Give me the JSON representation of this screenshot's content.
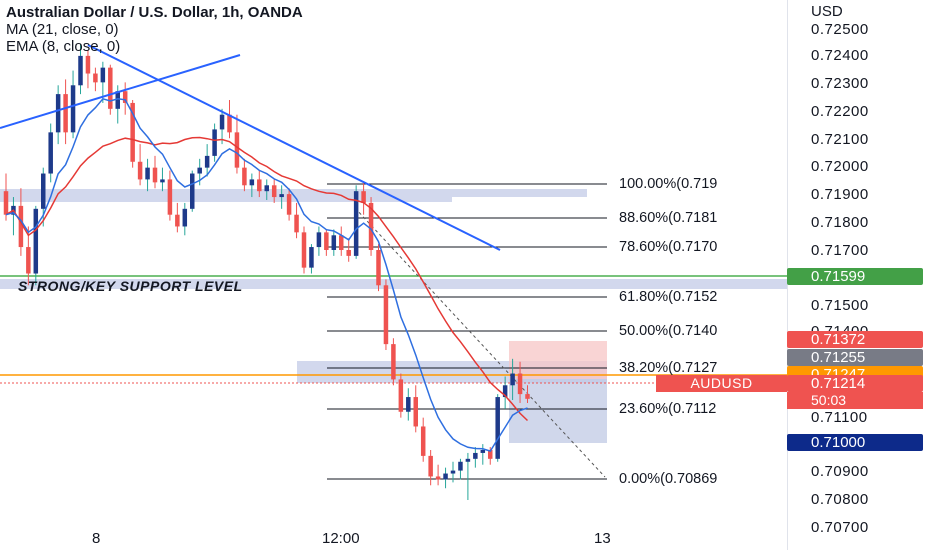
{
  "header": {
    "title": "Australian Dollar / U.S. Dollar, 1h, OANDA",
    "indicators": [
      "MA (21, close, 0)",
      "EMA (8, close, 0)"
    ]
  },
  "axis": {
    "currency": "USD",
    "y_ticks": [
      "0.72500",
      "0.72400",
      "0.72300",
      "0.72200",
      "0.72100",
      "0.72000",
      "0.71900",
      "0.71800",
      "0.71700",
      "0.71500",
      "0.71400",
      "0.71100",
      "0.70900",
      "0.70800",
      "0.70700"
    ],
    "x_ticks": [
      "8",
      "12:00",
      "13"
    ]
  },
  "annotations": {
    "support_label": "STRONG/KEY SUPPORT LEVEL",
    "fib_levels": [
      "100.00%(0.719",
      "88.60%(0.7181",
      "78.60%(0.7170",
      "61.80%(0.7152",
      "50.00%(0.7140",
      "38.20%(0.7127",
      "23.60%(0.7112",
      "0.00%(0.70869"
    ]
  },
  "badges": {
    "support_price": "0.71599",
    "target_price": "0.71372",
    "marker_price": "0.71255",
    "orange_price": "0.71247",
    "symbol": "AUDUSD",
    "last_price": "0.71214",
    "countdown": "50:03",
    "stop_price": "0.71000"
  },
  "colors": {
    "up": "#1e3a8a",
    "down": "#ef5350",
    "ma": "#e53935",
    "ema": "#2f6fe0",
    "trendline": "#2962ff",
    "support": "#4caf50",
    "orange": "#ff9800"
  },
  "chart_data": {
    "type": "candlestick",
    "title": "Australian Dollar / U.S. Dollar, 1h, OANDA",
    "ylim": [
      0.707,
      0.7257
    ],
    "series": [
      {
        "name": "MA (21, close, 0)"
      },
      {
        "name": "EMA (8, close, 0)"
      }
    ],
    "candles": [
      {
        "o": 0.7192,
        "h": 0.7198,
        "l": 0.7182,
        "c": 0.7184
      },
      {
        "o": 0.7184,
        "h": 0.719,
        "l": 0.7177,
        "c": 0.7187
      },
      {
        "o": 0.7187,
        "h": 0.7193,
        "l": 0.717,
        "c": 0.7173
      },
      {
        "o": 0.7173,
        "h": 0.718,
        "l": 0.716,
        "c": 0.7164
      },
      {
        "o": 0.7164,
        "h": 0.7187,
        "l": 0.716,
        "c": 0.7186
      },
      {
        "o": 0.7186,
        "h": 0.72,
        "l": 0.718,
        "c": 0.7198
      },
      {
        "o": 0.7198,
        "h": 0.7215,
        "l": 0.7195,
        "c": 0.7212
      },
      {
        "o": 0.7212,
        "h": 0.7228,
        "l": 0.7208,
        "c": 0.7225
      },
      {
        "o": 0.7225,
        "h": 0.723,
        "l": 0.7208,
        "c": 0.7212
      },
      {
        "o": 0.7212,
        "h": 0.7233,
        "l": 0.721,
        "c": 0.7228
      },
      {
        "o": 0.7228,
        "h": 0.7242,
        "l": 0.7225,
        "c": 0.7238
      },
      {
        "o": 0.7238,
        "h": 0.724,
        "l": 0.7227,
        "c": 0.7232
      },
      {
        "o": 0.7232,
        "h": 0.7234,
        "l": 0.7226,
        "c": 0.7229
      },
      {
        "o": 0.7229,
        "h": 0.7236,
        "l": 0.7222,
        "c": 0.7234
      },
      {
        "o": 0.7234,
        "h": 0.7235,
        "l": 0.7218,
        "c": 0.722
      },
      {
        "o": 0.722,
        "h": 0.7228,
        "l": 0.7215,
        "c": 0.7226
      },
      {
        "o": 0.7226,
        "h": 0.7229,
        "l": 0.7218,
        "c": 0.7222
      },
      {
        "o": 0.7222,
        "h": 0.7223,
        "l": 0.72,
        "c": 0.7202
      },
      {
        "o": 0.7202,
        "h": 0.7208,
        "l": 0.7194,
        "c": 0.7196
      },
      {
        "o": 0.7196,
        "h": 0.7203,
        "l": 0.7192,
        "c": 0.72
      },
      {
        "o": 0.72,
        "h": 0.7204,
        "l": 0.7193,
        "c": 0.7195
      },
      {
        "o": 0.7195,
        "h": 0.72,
        "l": 0.7192,
        "c": 0.7196
      },
      {
        "o": 0.7196,
        "h": 0.7199,
        "l": 0.7182,
        "c": 0.7184
      },
      {
        "o": 0.7184,
        "h": 0.7188,
        "l": 0.7178,
        "c": 0.718
      },
      {
        "o": 0.718,
        "h": 0.7188,
        "l": 0.7177,
        "c": 0.7186
      },
      {
        "o": 0.7186,
        "h": 0.7199,
        "l": 0.7185,
        "c": 0.7198
      },
      {
        "o": 0.7198,
        "h": 0.7203,
        "l": 0.7194,
        "c": 0.72
      },
      {
        "o": 0.72,
        "h": 0.7208,
        "l": 0.7197,
        "c": 0.7204
      },
      {
        "o": 0.7204,
        "h": 0.7215,
        "l": 0.7202,
        "c": 0.7213
      },
      {
        "o": 0.7213,
        "h": 0.722,
        "l": 0.7208,
        "c": 0.7218
      },
      {
        "o": 0.7218,
        "h": 0.7223,
        "l": 0.721,
        "c": 0.7212
      },
      {
        "o": 0.7212,
        "h": 0.7218,
        "l": 0.7198,
        "c": 0.72
      },
      {
        "o": 0.72,
        "h": 0.7203,
        "l": 0.7192,
        "c": 0.7194
      },
      {
        "o": 0.7194,
        "h": 0.7198,
        "l": 0.719,
        "c": 0.7196
      },
      {
        "o": 0.7196,
        "h": 0.7199,
        "l": 0.719,
        "c": 0.7192
      },
      {
        "o": 0.7192,
        "h": 0.7196,
        "l": 0.7189,
        "c": 0.7194
      },
      {
        "o": 0.7194,
        "h": 0.7196,
        "l": 0.7188,
        "c": 0.719
      },
      {
        "o": 0.719,
        "h": 0.7194,
        "l": 0.7186,
        "c": 0.7191
      },
      {
        "o": 0.7191,
        "h": 0.7193,
        "l": 0.7182,
        "c": 0.7184
      },
      {
        "o": 0.7184,
        "h": 0.7188,
        "l": 0.7176,
        "c": 0.7178
      },
      {
        "o": 0.7178,
        "h": 0.718,
        "l": 0.7164,
        "c": 0.7166
      },
      {
        "o": 0.7166,
        "h": 0.7174,
        "l": 0.7164,
        "c": 0.7173
      },
      {
        "o": 0.7173,
        "h": 0.718,
        "l": 0.717,
        "c": 0.7178
      },
      {
        "o": 0.7178,
        "h": 0.7179,
        "l": 0.717,
        "c": 0.7172
      },
      {
        "o": 0.7172,
        "h": 0.7179,
        "l": 0.717,
        "c": 0.7177
      },
      {
        "o": 0.7177,
        "h": 0.718,
        "l": 0.717,
        "c": 0.7172
      },
      {
        "o": 0.7172,
        "h": 0.7176,
        "l": 0.7168,
        "c": 0.717
      },
      {
        "o": 0.717,
        "h": 0.7194,
        "l": 0.7169,
        "c": 0.7192
      },
      {
        "o": 0.7192,
        "h": 0.7195,
        "l": 0.7184,
        "c": 0.7188
      },
      {
        "o": 0.7188,
        "h": 0.719,
        "l": 0.717,
        "c": 0.7172
      },
      {
        "o": 0.7172,
        "h": 0.7174,
        "l": 0.7158,
        "c": 0.716
      },
      {
        "o": 0.716,
        "h": 0.7162,
        "l": 0.7138,
        "c": 0.714
      },
      {
        "o": 0.714,
        "h": 0.7142,
        "l": 0.7126,
        "c": 0.7128
      },
      {
        "o": 0.7128,
        "h": 0.713,
        "l": 0.7115,
        "c": 0.7117
      },
      {
        "o": 0.7117,
        "h": 0.7125,
        "l": 0.7114,
        "c": 0.7122
      },
      {
        "o": 0.7122,
        "h": 0.7126,
        "l": 0.711,
        "c": 0.7112
      },
      {
        "o": 0.7112,
        "h": 0.7115,
        "l": 0.71,
        "c": 0.7102
      },
      {
        "o": 0.7102,
        "h": 0.7104,
        "l": 0.7092,
        "c": 0.7095
      },
      {
        "o": 0.7095,
        "h": 0.7099,
        "l": 0.7092,
        "c": 0.7094
      },
      {
        "o": 0.7094,
        "h": 0.7098,
        "l": 0.7091,
        "c": 0.7096
      },
      {
        "o": 0.7096,
        "h": 0.71,
        "l": 0.7093,
        "c": 0.7097
      },
      {
        "o": 0.7097,
        "h": 0.7101,
        "l": 0.7094,
        "c": 0.71
      },
      {
        "o": 0.71,
        "h": 0.7103,
        "l": 0.7087,
        "c": 0.7101
      },
      {
        "o": 0.7101,
        "h": 0.7105,
        "l": 0.7098,
        "c": 0.7103
      },
      {
        "o": 0.7103,
        "h": 0.7106,
        "l": 0.7099,
        "c": 0.7104
      },
      {
        "o": 0.7104,
        "h": 0.7105,
        "l": 0.7099,
        "c": 0.7101
      },
      {
        "o": 0.7101,
        "h": 0.7123,
        "l": 0.71,
        "c": 0.7122
      },
      {
        "o": 0.7122,
        "h": 0.7129,
        "l": 0.7118,
        "c": 0.7126
      },
      {
        "o": 0.7126,
        "h": 0.7135,
        "l": 0.7121,
        "c": 0.713
      },
      {
        "o": 0.713,
        "h": 0.7134,
        "l": 0.712,
        "c": 0.7123
      },
      {
        "o": 0.7123,
        "h": 0.7126,
        "l": 0.712,
        "c": 0.71214
      }
    ]
  }
}
